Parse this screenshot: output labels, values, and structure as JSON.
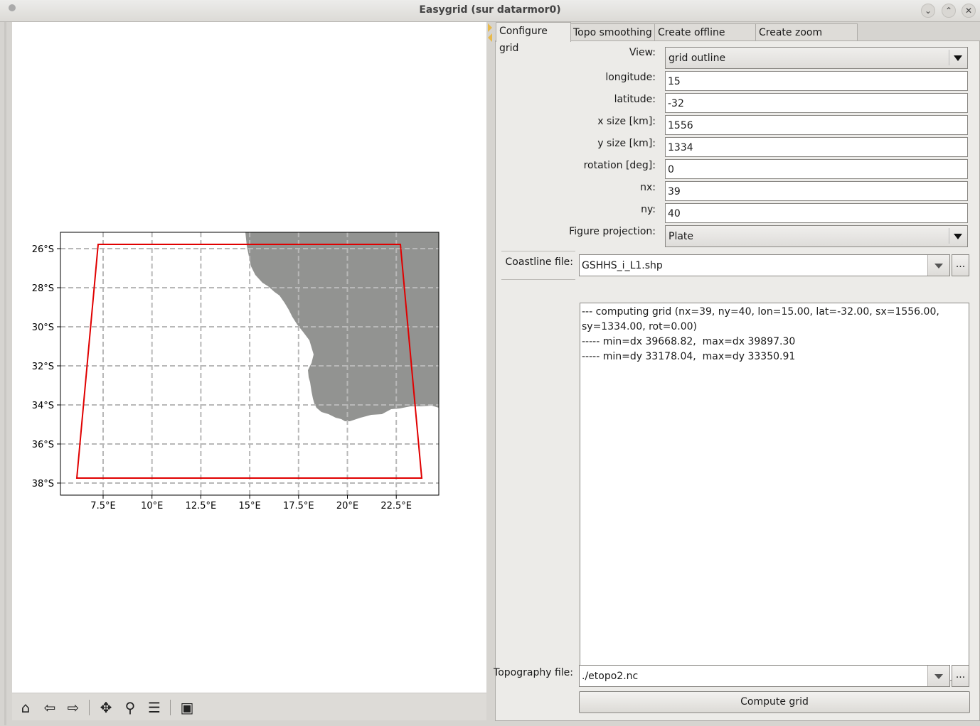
{
  "window": {
    "title": "Easygrid (sur datarmor0)"
  },
  "tabs": [
    {
      "label": "Configure grid",
      "active": true
    },
    {
      "label": "Topo smoothing",
      "active": false
    },
    {
      "label": "Create offline zoom",
      "active": false
    },
    {
      "label": "Create zoom AGRIF",
      "active": false
    }
  ],
  "form": {
    "view": {
      "label": "View:",
      "value": "grid outline"
    },
    "longitude": {
      "label": "longitude:",
      "value": "15"
    },
    "latitude": {
      "label": "latitude:",
      "value": "-32"
    },
    "x_size": {
      "label": "x size [km]:",
      "value": "1556"
    },
    "y_size": {
      "label": "y size [km]:",
      "value": "1334"
    },
    "rotation": {
      "label": "rotation [deg]:",
      "value": "0"
    },
    "nx": {
      "label": "nx:",
      "value": "39"
    },
    "ny": {
      "label": "ny:",
      "value": "40"
    },
    "projection": {
      "label": "Figure projection:",
      "value": "Plate"
    },
    "coastline": {
      "label": "Coastline file:",
      "value": "GSHHS_i_L1.shp",
      "browse": "..."
    },
    "topography": {
      "label": "Topography file:",
      "value": "./etopo2.nc",
      "browse": "..."
    }
  },
  "log": [
    "--- computing grid (nx=39, ny=40, lon=15.00, lat=-32.00, sx=1556.00, sy=1334.00, rot=0.00)",
    "----- min=dx 39668.82,  max=dx 39897.30",
    "----- min=dy 33178.04,  max=dy 33350.91"
  ],
  "compute_button": "Compute grid",
  "map": {
    "lat_ticks": [
      "26°S",
      "28°S",
      "30°S",
      "32°S",
      "34°S",
      "36°S",
      "38°S"
    ],
    "lon_ticks": [
      "7.5°E",
      "10°E",
      "12.5°E",
      "15°E",
      "17.5°E",
      "20°E",
      "22.5°E"
    ],
    "grid_outline_color": "#e00000",
    "land_color": "#929391"
  },
  "toolbar_icons": [
    "home-icon",
    "back-arrow-icon",
    "forward-arrow-icon",
    "pan-icon",
    "zoom-icon",
    "configure-subplots-icon",
    "save-icon"
  ]
}
